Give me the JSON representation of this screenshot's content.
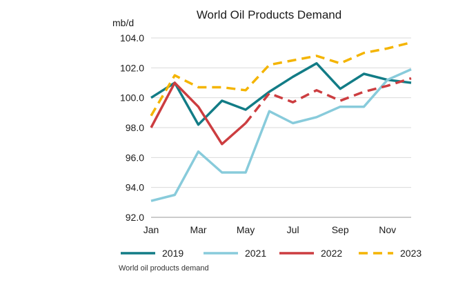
{
  "chart_data": {
    "type": "line",
    "title": "World Oil Products Demand",
    "ylabel": "mb/d",
    "xlabel": "",
    "ylim": [
      92.0,
      104.0
    ],
    "yticks": [
      "92.0",
      "94.0",
      "96.0",
      "98.0",
      "100.0",
      "102.0",
      "104.0"
    ],
    "categories": [
      "Jan",
      "Feb",
      "Mar",
      "Apr",
      "May",
      "Jun",
      "Jul",
      "Aug",
      "Sep",
      "Oct",
      "Nov",
      "Dec"
    ],
    "xtick_labels": [
      "Jan",
      "Mar",
      "May",
      "Jul",
      "Sep",
      "Nov"
    ],
    "grid": true,
    "legend_position": "bottom",
    "series": [
      {
        "name": "2019",
        "color": "#127c86",
        "style": "solid",
        "values": [
          100.0,
          101.0,
          98.2,
          99.8,
          99.2,
          100.4,
          101.4,
          102.3,
          100.6,
          101.6,
          101.2,
          101.0
        ]
      },
      {
        "name": "2021",
        "color": "#88cbdb",
        "style": "solid",
        "values": [
          93.1,
          93.5,
          96.4,
          95.0,
          95.0,
          99.1,
          98.3,
          98.7,
          99.4,
          99.4,
          101.2,
          101.9
        ]
      },
      {
        "name": "2022",
        "color": "#cc3d40",
        "style": "solid-then-dashed",
        "dash_from_index": 4,
        "values": [
          98.0,
          101.0,
          99.4,
          96.9,
          98.3,
          100.3,
          99.7,
          100.5,
          99.8,
          100.4,
          100.8,
          101.3
        ]
      },
      {
        "name": "2023",
        "color": "#f4b400",
        "style": "dashed",
        "values": [
          98.8,
          101.5,
          100.7,
          100.7,
          100.5,
          102.2,
          102.5,
          102.8,
          102.3,
          103.0,
          103.3,
          103.7
        ]
      }
    ]
  },
  "caption": "World oil products demand"
}
